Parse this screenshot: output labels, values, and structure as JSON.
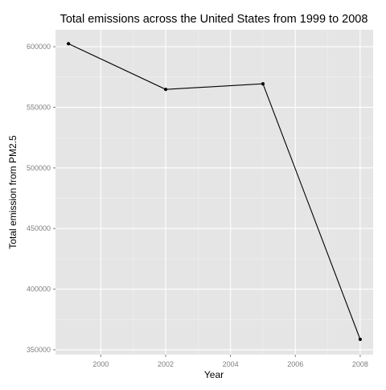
{
  "chart_data": {
    "type": "line",
    "title": "Total emissions across the United States from 1999 to 2008",
    "xlabel": "Year",
    "ylabel": "Total emission from PM2.5",
    "x": [
      1999,
      2002,
      2005,
      2008
    ],
    "series": [
      {
        "values": [
          602500,
          564800,
          569400,
          358600
        ]
      }
    ],
    "xlim": [
      1998.6,
      2008.4
    ],
    "ylim": [
      346000,
      614000
    ],
    "x_ticks": [
      2000,
      2002,
      2004,
      2006,
      2008
    ],
    "x_tick_labels": [
      "2000",
      "2002",
      "2004",
      "2006",
      "2008"
    ],
    "y_ticks": [
      350000,
      400000,
      450000,
      500000,
      550000,
      600000
    ],
    "y_tick_labels": [
      "350000",
      "400000",
      "450000",
      "500000",
      "550000",
      "600000"
    ],
    "grid": true,
    "legend": "none",
    "colors": {
      "panel_background": "#e5e5e5",
      "grid_major": "#ffffff",
      "grid_minor": "#f2f2f2",
      "line": "#000000",
      "tick_text": "#7f7f7f"
    }
  }
}
